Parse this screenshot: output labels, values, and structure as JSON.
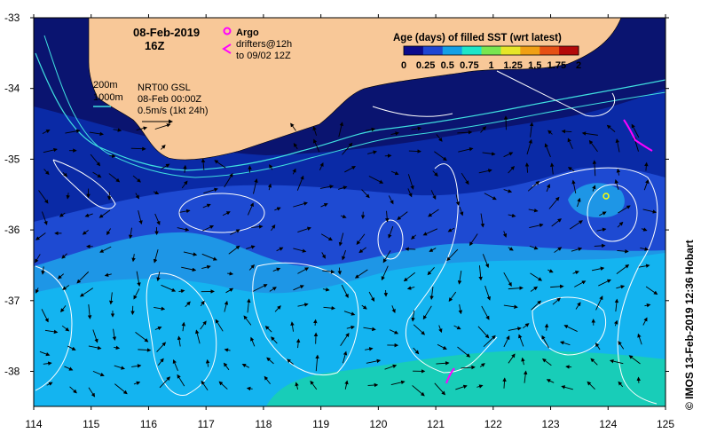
{
  "title": {
    "date": "08-Feb-2019",
    "time": "16Z"
  },
  "legend": {
    "argo_label": "Argo",
    "drifters_line1": "drifters@12h",
    "drifters_line2": "to 09/02 12Z",
    "age_title": "Age (days) of filled SST (wrt latest)",
    "age_ticks": [
      "0",
      "0.25",
      "0.5",
      "0.75",
      "1",
      "1.25",
      "1.5",
      "1.75",
      "2"
    ],
    "age_colors": [
      "#0a0a8c",
      "#1e46d2",
      "#14a0e6",
      "#1ee6c8",
      "#78e650",
      "#e6e628",
      "#f0a014",
      "#e65014",
      "#b40a0a"
    ]
  },
  "isobaths": {
    "line1": "200m",
    "line2": "1000m"
  },
  "currents": {
    "source_line1": "NRT00 GSL",
    "source_line2": "08-Feb 00:00Z",
    "scale_line": "0.5m/s (1kt 24h)"
  },
  "axes": {
    "lat_labels": [
      "-33",
      "-34",
      "-35",
      "-36",
      "-37",
      "-38"
    ],
    "lon_labels": [
      "114",
      "115",
      "116",
      "117",
      "118",
      "119",
      "120",
      "121",
      "122",
      "123",
      "124",
      "125"
    ]
  },
  "credit": "© IMOS 13-Feb-2019 12:36 Hobart",
  "colors": {
    "land": "#f8c898",
    "deep_sea": "#0a1470",
    "sst_band1": "#0a2aa6",
    "sst_band2": "#1e4ad2",
    "sst_band3": "#1e96e6",
    "sst_band4": "#14b4f0",
    "sst_band5": "#18cdb8",
    "coast_contour": "#40e0e0",
    "argo": "#ff00ff",
    "drifter": "#ff00ff"
  }
}
